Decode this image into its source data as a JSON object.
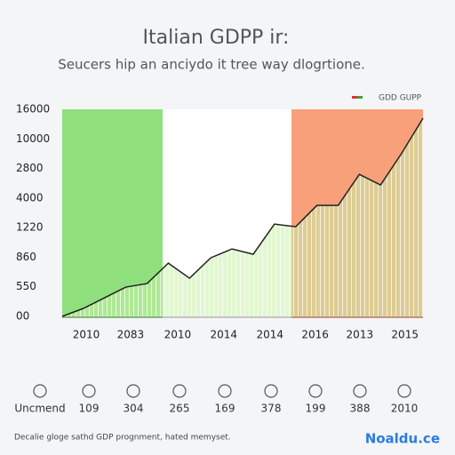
{
  "chart_data": {
    "type": "line",
    "title": "Italian GDPP ir:",
    "subtitle": "Seucers hip an anciydo it tree way dlogrtione.",
    "legend_label": "GDD GUPP",
    "x": [
      0,
      1,
      2,
      3,
      4,
      5,
      6,
      7,
      8,
      9,
      10,
      11,
      12,
      13,
      14,
      15,
      16,
      17
    ],
    "series": [
      {
        "name": "GDD GUPP",
        "color": "#222222",
        "values": [
          0,
          0.27,
          0.63,
          0.99,
          1.11,
          1.8,
          1.29,
          1.98,
          2.28,
          2.1,
          3.12,
          3.03,
          3.75,
          3.75,
          4.8,
          4.44,
          5.52,
          6.7
        ]
      }
    ],
    "xlim": [
      0,
      17
    ],
    "xticks": [
      {
        "value": 1.13,
        "label": "2010"
      },
      {
        "value": 3.22,
        "label": "2083"
      },
      {
        "value": 5.44,
        "label": "2010"
      },
      {
        "value": 7.61,
        "label": "2014"
      },
      {
        "value": 9.79,
        "label": "2014"
      },
      {
        "value": 11.92,
        "label": "2016"
      },
      {
        "value": 14.02,
        "label": "2013"
      },
      {
        "value": 16.15,
        "label": "2015"
      }
    ],
    "ylim": [
      0,
      7
    ],
    "yticks": [
      {
        "value": 0,
        "label": "00"
      },
      {
        "value": 1,
        "label": "550"
      },
      {
        "value": 2,
        "label": "860"
      },
      {
        "value": 3,
        "label": "1220"
      },
      {
        "value": 4,
        "label": "4000"
      },
      {
        "value": 5,
        "label": "2800"
      },
      {
        "value": 6,
        "label": "10000"
      },
      {
        "value": 7,
        "label": "16000"
      }
    ],
    "grid": false
  },
  "summary_row": {
    "label": "Uncmend",
    "items": [
      "109",
      "304",
      "265",
      "169",
      "378",
      "199",
      "388",
      "2010"
    ]
  },
  "footer": {
    "note": "Decalie gloge sathd GDP prognment, hated memyset.",
    "logo": "Noaldu.ce"
  }
}
